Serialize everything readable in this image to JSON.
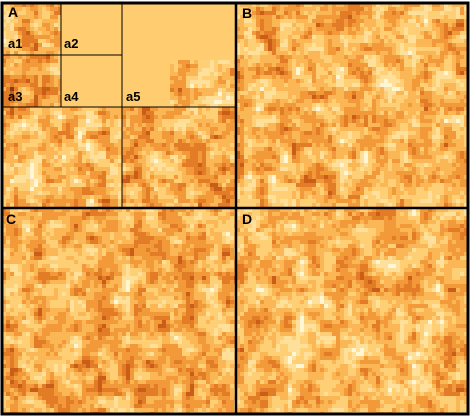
{
  "figure": {
    "panels": [
      {
        "id": "A",
        "label": "A"
      },
      {
        "id": "B",
        "label": "B"
      },
      {
        "id": "C",
        "label": "C"
      },
      {
        "id": "D",
        "label": "D"
      }
    ],
    "subpanels": [
      {
        "id": "a1",
        "label": "a1"
      },
      {
        "id": "a2",
        "label": "a2"
      },
      {
        "id": "a3",
        "label": "a3"
      },
      {
        "id": "a4",
        "label": "a4"
      },
      {
        "id": "a5",
        "label": "a5"
      }
    ],
    "palette": {
      "border": "#000000",
      "background": "#ffffff",
      "heat_colors": [
        "#fff6d6",
        "#ffe09a",
        "#ffcf75",
        "#fbb655",
        "#f29a3a",
        "#e27c27",
        "#c95e18",
        "#8e3a0e"
      ],
      "flat_region": "#ffcc70"
    }
  }
}
